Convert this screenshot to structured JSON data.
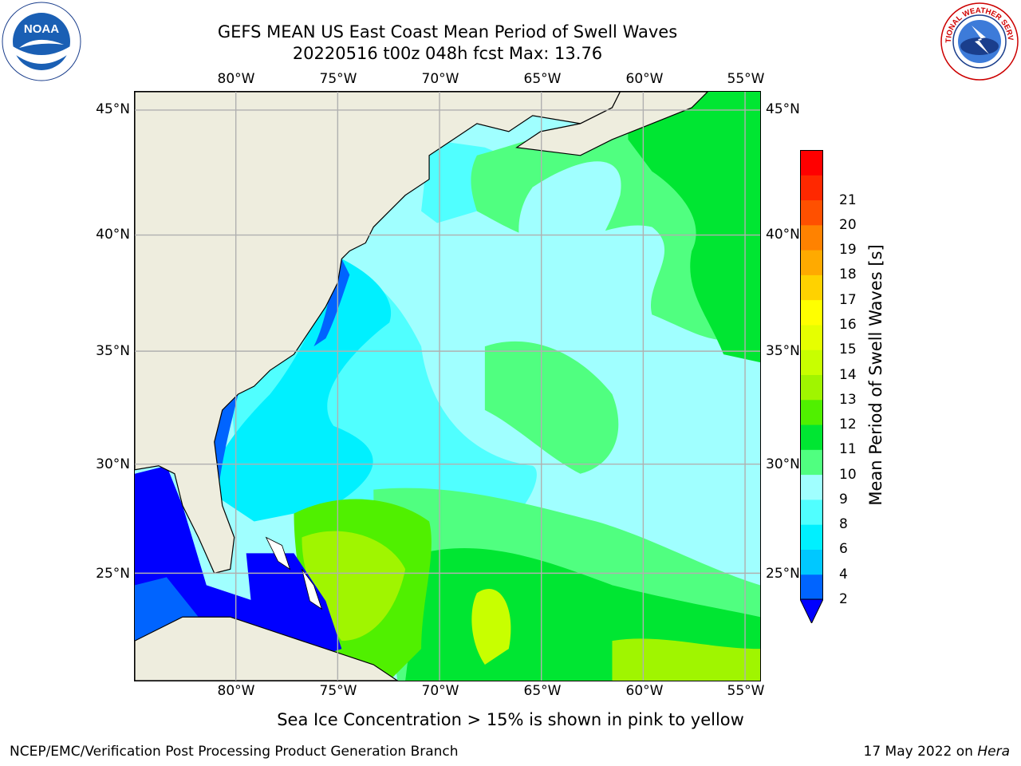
{
  "header": {
    "title_line1": "GEFS MEAN US East Coast Mean Period of Swell Waves",
    "title_line2": "20220516 t00z 048h fcst   Max: 13.76"
  },
  "map": {
    "lon_labels": [
      "80°W",
      "75°W",
      "70°W",
      "65°W",
      "60°W",
      "55°W"
    ],
    "lat_labels": [
      "45°N",
      "40°N",
      "35°N",
      "30°N",
      "25°N"
    ],
    "land_color": "#eeedde",
    "grid_color": "#b0b0b0"
  },
  "colorbar": {
    "title": "Mean Period of Swell Waves [s]",
    "levels": [
      "2",
      "4",
      "6",
      "8",
      "9",
      "10",
      "11",
      "12",
      "13",
      "14",
      "15",
      "16",
      "17",
      "18",
      "19",
      "20",
      "21"
    ],
    "colors": [
      "#0064ff",
      "#00c8ff",
      "#00f0ff",
      "#50ffff",
      "#a0ffff",
      "#50ff80",
      "#00e632",
      "#50f000",
      "#a0f500",
      "#c8ff00",
      "#e6ff00",
      "#ffff00",
      "#ffd200",
      "#ffaa00",
      "#ff8200",
      "#ff5000",
      "#ff2800",
      "#ff0000"
    ],
    "extend_color": "#0000ff"
  },
  "footer": {
    "sea_ice_note": "Sea Ice Concentration > 15% is shown in pink to yellow",
    "left": "NCEP/EMC/Verification Post Processing Product Generation Branch",
    "date": "17 May 2022 on ",
    "machine": "Hera"
  },
  "logos": {
    "noaa_text": "NOAA",
    "nws_text": "NATIONAL WEATHER SERVICE"
  }
}
